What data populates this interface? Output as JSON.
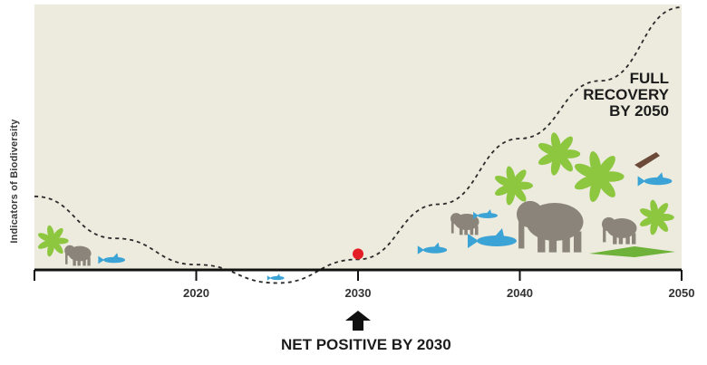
{
  "chart_data": {
    "type": "line",
    "xlabel": "",
    "ylabel": "Indicators of Biodiversity",
    "xlim": [
      2010,
      2050
    ],
    "ylim": [
      0,
      100
    ],
    "ticks": [
      "2020",
      "2030",
      "2040",
      "2050"
    ],
    "tick_values": [
      2020,
      2030,
      2040,
      2050
    ],
    "grid": false,
    "series": [
      {
        "style": "dashed",
        "x": [
          2010,
          2015,
          2020,
          2025,
          2030,
          2035,
          2040,
          2045,
          2050
        ],
        "y": [
          28,
          12,
          2,
          -5,
          4,
          25,
          50,
          72,
          100
        ]
      }
    ],
    "marker": {
      "x": 2030,
      "y": 4,
      "color": "#e41e26"
    },
    "annotations": {
      "full_recovery": [
        "FULL",
        "RECOVERY",
        "BY 2050"
      ],
      "net_positive": "NET POSITIVE BY 2030"
    },
    "colors": {
      "background": "#ecebdd",
      "axis": "#111111",
      "plant": "#8dc63f",
      "elephant": "#8a847b",
      "fish": "#3ba3d6",
      "crocodile": "#6fb23a"
    }
  }
}
